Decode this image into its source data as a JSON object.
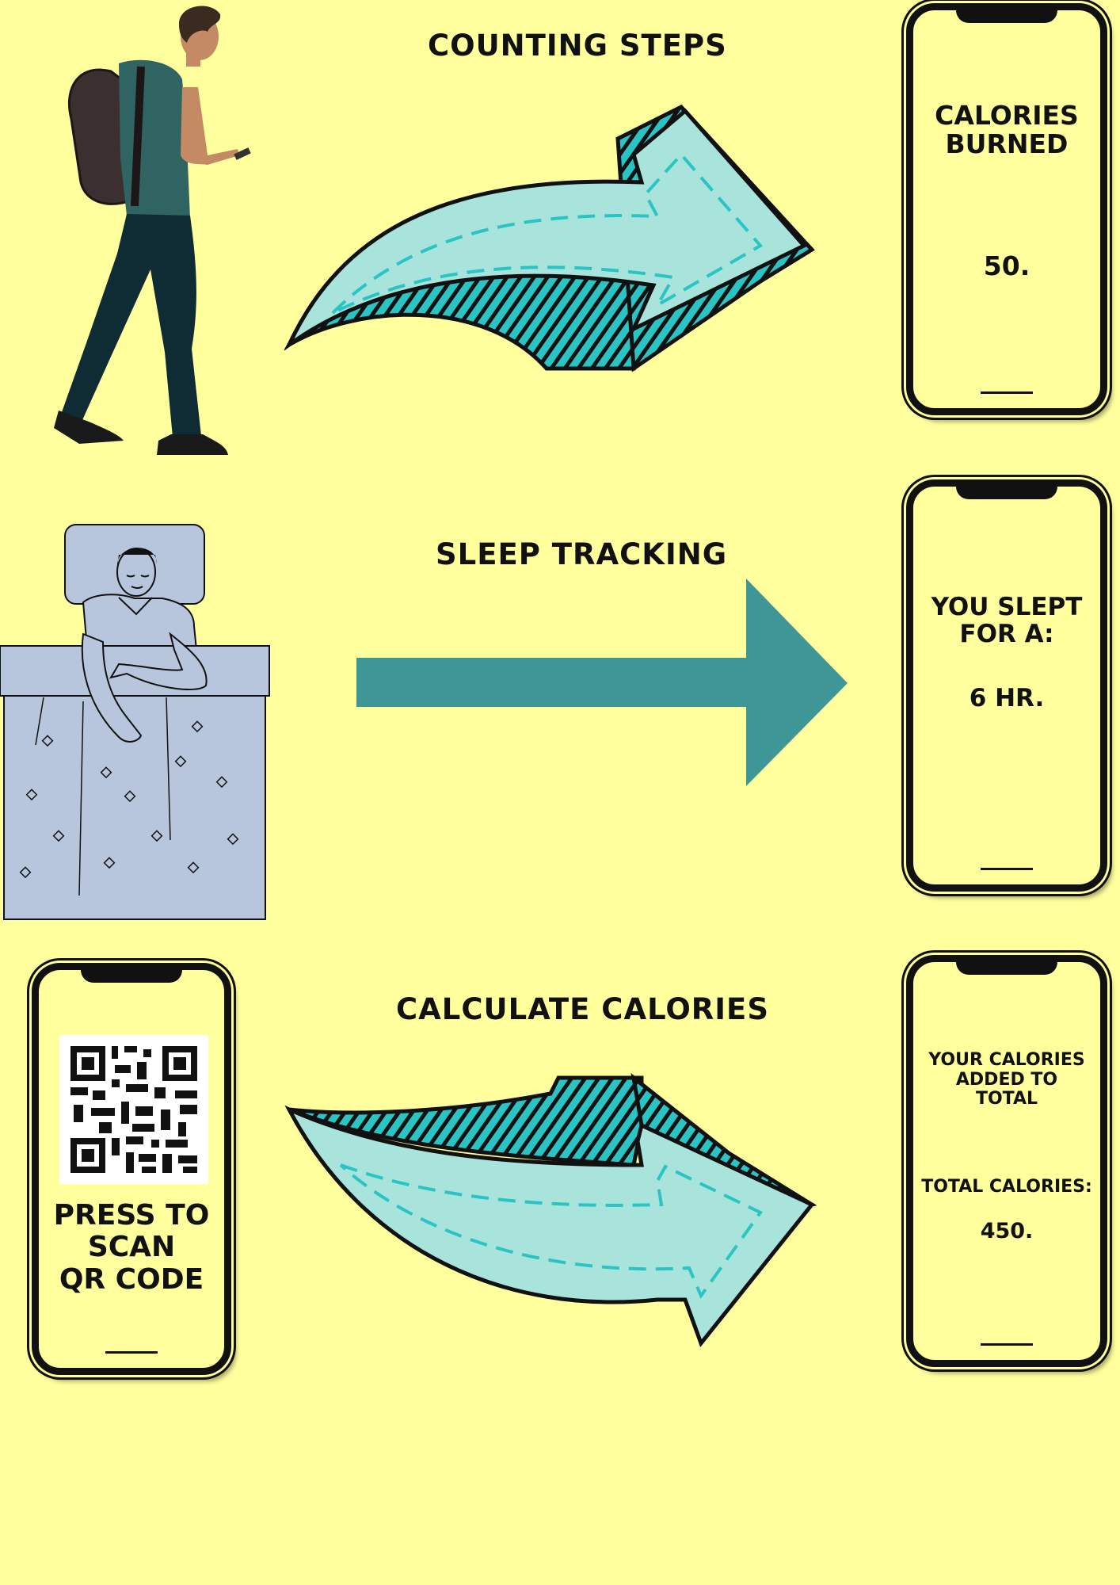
{
  "rows": [
    {
      "heading": "COUNTING STEPS",
      "phone": {
        "title": "CALORIES\nBURNED",
        "value": "50."
      }
    },
    {
      "heading": "SLEEP TRACKING",
      "phone": {
        "title": "YOU SLEPT\nFOR A:",
        "value": "6 HR."
      }
    },
    {
      "heading": "CALCULATE CALORIES",
      "phone": {
        "title": "YOUR CALORIES\nADDED TO\nTOTAL",
        "total_label": "TOTAL CALORIES:",
        "value": "450."
      }
    }
  ],
  "scan_phone": {
    "label": "PRESS TO\nSCAN\nQR CODE"
  },
  "colors": {
    "background": "#ffff9e",
    "arrow_light": "#a8e4dc",
    "arrow_stripe": "#2bc4c4",
    "arrow_dark": "#3e9696",
    "outline": "#111111"
  },
  "icons": {
    "walking_person": "person-walking-with-phone-illustration",
    "sleeping_person": "person-sleeping-in-bed-illustration",
    "qr": "qr-code-icon"
  }
}
